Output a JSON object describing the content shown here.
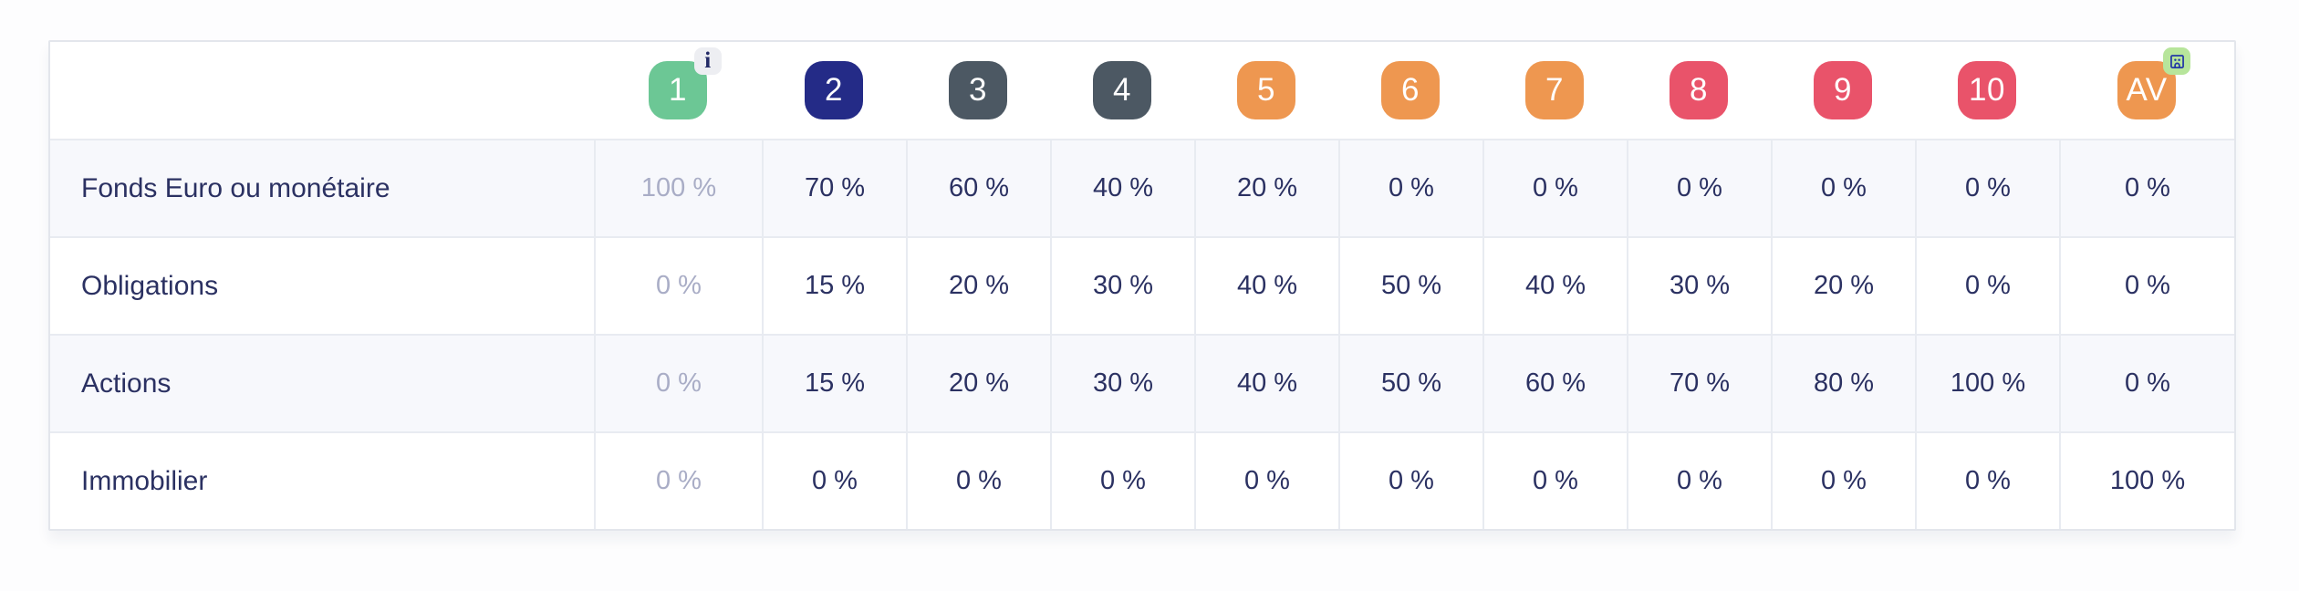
{
  "header": {
    "info_glyph": "i",
    "columns": [
      {
        "id": "1",
        "label": "1",
        "color": "#6CC795",
        "corner_icon": "info-icon"
      },
      {
        "id": "2",
        "label": "2",
        "color": "#242B87"
      },
      {
        "id": "3",
        "label": "3",
        "color": "#4C5863"
      },
      {
        "id": "4",
        "label": "4",
        "color": "#4C5863"
      },
      {
        "id": "5",
        "label": "5",
        "color": "#EE9750"
      },
      {
        "id": "6",
        "label": "6",
        "color": "#EE9750"
      },
      {
        "id": "7",
        "label": "7",
        "color": "#EE9750"
      },
      {
        "id": "8",
        "label": "8",
        "color": "#E9536A"
      },
      {
        "id": "9",
        "label": "9",
        "color": "#E9536A"
      },
      {
        "id": "10",
        "label": "10",
        "color": "#E9536A"
      },
      {
        "id": "AV",
        "label": "AV",
        "color": "#EE9750",
        "corner_icon": "building-icon"
      }
    ]
  },
  "rows": [
    {
      "label": "Fonds Euro ou monétaire",
      "values": [
        "100 %",
        "70 %",
        "60 %",
        "40 %",
        "20 %",
        "0 %",
        "0 %",
        "0 %",
        "0 %",
        "0 %",
        "0 %"
      ]
    },
    {
      "label": "Obligations",
      "values": [
        "0 %",
        "15 %",
        "20 %",
        "30 %",
        "40 %",
        "50 %",
        "40 %",
        "30 %",
        "20 %",
        "0 %",
        "0 %"
      ]
    },
    {
      "label": "Actions",
      "values": [
        "0 %",
        "15 %",
        "20 %",
        "30 %",
        "40 %",
        "50 %",
        "60 %",
        "70 %",
        "80 %",
        "100 %",
        "0 %"
      ]
    },
    {
      "label": "Immobilier",
      "values": [
        "0 %",
        "0 %",
        "0 %",
        "0 %",
        "0 %",
        "0 %",
        "0 %",
        "0 %",
        "0 %",
        "0 %",
        "100 %"
      ]
    }
  ],
  "colors": {
    "value_text": "#2B3162",
    "muted_value_text": "#A9ADC6",
    "row_alt_background": "#F7F8FC",
    "cell_border": "#E8EBF1",
    "card_border": "#E3E6EC",
    "badge_green": "#6CC795",
    "badge_navy": "#242B87",
    "badge_slate": "#4C5863",
    "badge_orange": "#EE9750",
    "badge_red": "#E9536A",
    "info_chip_background": "#EDEEF2",
    "info_chip_glyph_color": "#232A66",
    "building_chip_background": "#B7E59B",
    "building_chip_glyph_color": "#2438A6"
  }
}
